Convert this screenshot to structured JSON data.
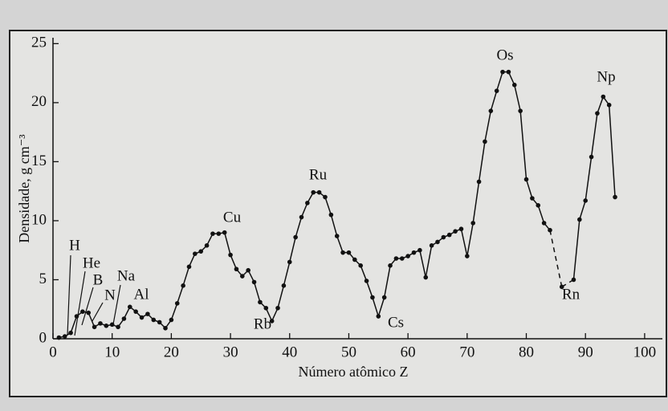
{
  "chart_data": {
    "type": "line",
    "y_label": "Densidade, g cm⁻³",
    "x_label": "Número atômico Z",
    "xlim": [
      0,
      103
    ],
    "ylim": [
      0,
      25.5
    ],
    "xticks": [
      0,
      10,
      20,
      30,
      40,
      50,
      60,
      70,
      80,
      90,
      100
    ],
    "yticks": [
      0,
      5,
      10,
      15,
      20,
      25
    ],
    "color": "#111111",
    "x": [
      1,
      2,
      3,
      4,
      5,
      6,
      7,
      8,
      9,
      10,
      11,
      12,
      13,
      14,
      15,
      16,
      17,
      18,
      19,
      20,
      21,
      22,
      23,
      24,
      25,
      26,
      27,
      28,
      29,
      30,
      31,
      32,
      33,
      34,
      35,
      36,
      37,
      38,
      39,
      40,
      41,
      42,
      43,
      44,
      45,
      46,
      47,
      48,
      49,
      50,
      51,
      52,
      53,
      54,
      55,
      56,
      57,
      58,
      59,
      60,
      61,
      62,
      63,
      64,
      65,
      66,
      67,
      68,
      69,
      70,
      71,
      72,
      73,
      74,
      75,
      76,
      77,
      78,
      79,
      80,
      81,
      82,
      83,
      84,
      86,
      88,
      89,
      90,
      91,
      92,
      93,
      94,
      95
    ],
    "values": [
      0.1,
      0.2,
      0.5,
      1.9,
      2.3,
      2.2,
      1.0,
      1.3,
      1.1,
      1.2,
      1.0,
      1.7,
      2.7,
      2.3,
      1.8,
      2.1,
      1.6,
      1.4,
      0.9,
      1.6,
      3.0,
      4.5,
      6.1,
      7.2,
      7.4,
      7.9,
      8.9,
      8.9,
      9.0,
      7.1,
      5.9,
      5.3,
      5.8,
      4.8,
      3.1,
      2.6,
      1.5,
      2.6,
      4.5,
      6.5,
      8.6,
      10.3,
      11.5,
      12.4,
      12.4,
      12.0,
      10.5,
      8.7,
      7.3,
      7.3,
      6.7,
      6.2,
      4.9,
      3.5,
      1.9,
      3.5,
      6.2,
      6.8,
      6.8,
      7.0,
      7.3,
      7.5,
      5.2,
      7.9,
      8.2,
      8.6,
      8.8,
      9.1,
      9.3,
      7.0,
      9.8,
      13.3,
      16.7,
      19.3,
      21.0,
      22.6,
      22.6,
      21.5,
      19.3,
      13.5,
      11.9,
      11.3,
      9.8,
      9.2,
      4.4,
      5.0,
      10.1,
      11.7,
      15.4,
      19.1,
      20.5,
      19.8,
      12.0
    ],
    "annotations": [
      "H",
      "He",
      "B",
      "N",
      "Na",
      "Al",
      "Cu",
      "Rb",
      "Ru",
      "Cs",
      "Os",
      "Rn",
      "Np"
    ]
  }
}
